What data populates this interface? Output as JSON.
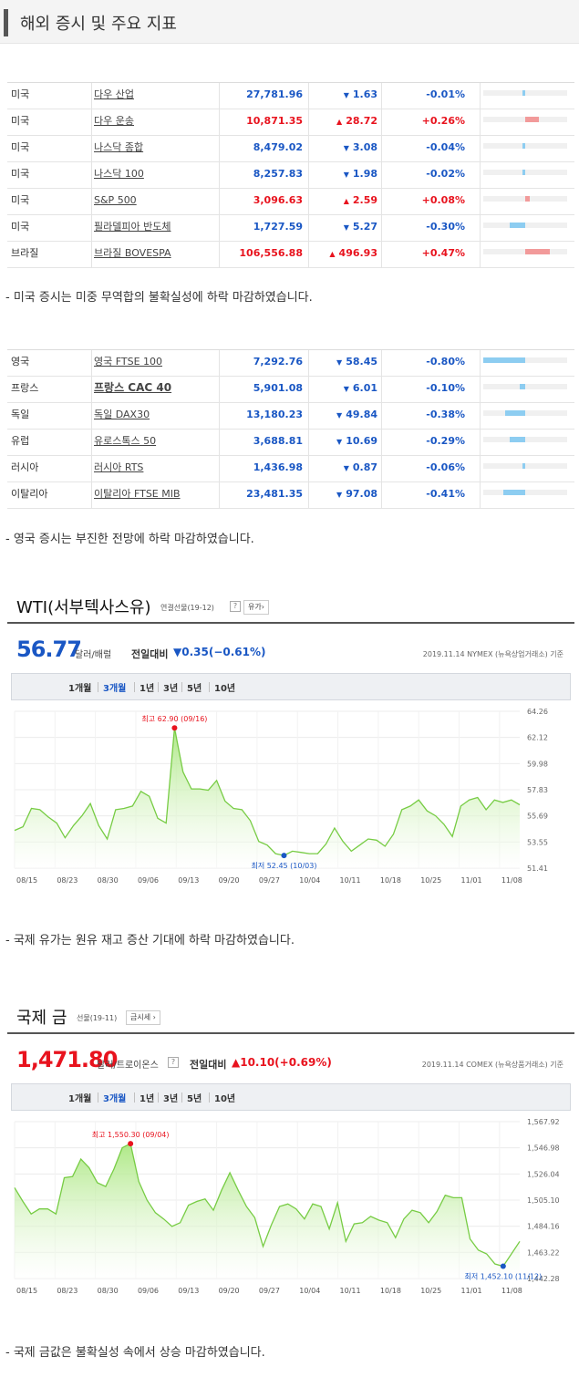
{
  "page_title": "해외 증시 및 주요 지표",
  "table1": [
    {
      "country": "미국",
      "name": "다우 산업",
      "price": "27,781.96",
      "dir": "down",
      "change": "1.63",
      "pct": "-0.01%",
      "bar": 0.01
    },
    {
      "country": "미국",
      "name": "다우 운송",
      "price": "10,871.35",
      "dir": "up",
      "change": "28.72",
      "pct": "+0.26%",
      "bar": 0.26
    },
    {
      "country": "미국",
      "name": "나스닥 종합",
      "price": "8,479.02",
      "dir": "down",
      "change": "3.08",
      "pct": "-0.04%",
      "bar": 0.04
    },
    {
      "country": "미국",
      "name": "나스닥 100",
      "price": "8,257.83",
      "dir": "down",
      "change": "1.98",
      "pct": "-0.02%",
      "bar": 0.02
    },
    {
      "country": "미국",
      "name": "S&P 500",
      "price": "3,096.63",
      "dir": "up",
      "change": "2.59",
      "pct": "+0.08%",
      "bar": 0.08
    },
    {
      "country": "미국",
      "name": "필라델피아 반도체",
      "price": "1,727.59",
      "dir": "down",
      "change": "5.27",
      "pct": "-0.30%",
      "bar": 0.3
    },
    {
      "country": "브라질",
      "name": "브라질 BOVESPA",
      "price": "106,556.88",
      "dir": "up",
      "change": "496.93",
      "pct": "+0.47%",
      "bar": 0.47
    }
  ],
  "note1": "- 미국 증시는 미중 무역합의 불확실성에 하락 마감하였습니다.",
  "table2": [
    {
      "country": "영국",
      "name": "영국 FTSE 100",
      "price": "7,292.76",
      "dir": "down",
      "change": "58.45",
      "pct": "-0.80%",
      "bar": 0.8
    },
    {
      "country": "프랑스",
      "name": "프랑스 CAC 40",
      "bold": true,
      "price": "5,901.08",
      "dir": "down",
      "change": "6.01",
      "pct": "-0.10%",
      "bar": 0.1
    },
    {
      "country": "독일",
      "name": "독일 DAX30",
      "price": "13,180.23",
      "dir": "down",
      "change": "49.84",
      "pct": "-0.38%",
      "bar": 0.38
    },
    {
      "country": "유럽",
      "name": "유로스톡스 50",
      "price": "3,688.81",
      "dir": "down",
      "change": "10.69",
      "pct": "-0.29%",
      "bar": 0.29
    },
    {
      "country": "러시아",
      "name": "러시아 RTS",
      "price": "1,436.98",
      "dir": "down",
      "change": "0.87",
      "pct": "-0.06%",
      "bar": 0.06
    },
    {
      "country": "이탈리아",
      "name": "이탈리아 FTSE MIB",
      "price": "23,481.35",
      "dir": "down",
      "change": "97.08",
      "pct": "-0.41%",
      "bar": 0.41
    }
  ],
  "note2": "- 영국 증시는 부진한 전망에 하락 마감하였습니다.",
  "wti": {
    "title": "WTI(서부텍사스유)",
    "sub": "연결선물(19-12)",
    "help": "?",
    "btn": "유가›",
    "price": "56.77",
    "unit": "달러/배럴",
    "chg_label": "전일대비",
    "chg": "▼0.35(−0.61%)",
    "source": "2019.11.14 NYMEX (뉴욕상업거래소) 기준",
    "tabs": [
      "1개월",
      "3개월",
      "1년",
      "3년",
      "5년",
      "10년"
    ],
    "active_tab": "3개월"
  },
  "note3": "- 국제 유가는 원유 재고 증산 기대에 하락 마감하였습니다.",
  "gold": {
    "title": "국제 금",
    "sub": "선물(19-11)",
    "btn": "금시세 ›",
    "price": "1,471.80",
    "unit": "달러/트로이온스",
    "help": "?",
    "chg_label": "전일대비",
    "chg": "▲10.10(+0.69%)",
    "source": "2019.11.14 COMEX (뉴욕상품거래소) 기준",
    "tabs": [
      "1개월",
      "3개월",
      "1년",
      "3년",
      "5년",
      "10년"
    ],
    "active_tab": "3개월"
  },
  "note4": "- 국제 금값은 불확실성 속에서 상승 마감하였습니다.",
  "chart_data": [
    {
      "type": "area",
      "title": "WTI(서부텍사스유)",
      "x_ticks": [
        "08/15",
        "08/23",
        "08/30",
        "09/06",
        "09/13",
        "09/20",
        "09/27",
        "10/04",
        "10/11",
        "10/18",
        "10/25",
        "11/01",
        "11/08"
      ],
      "y_ticks": [
        "64.26",
        "62.12",
        "59.98",
        "57.83",
        "55.69",
        "53.55",
        "51.41"
      ],
      "ylim": [
        51.41,
        64.26
      ],
      "series": [
        {
          "values": [
            54.5,
            54.8,
            56.3,
            56.2,
            55.6,
            55.1,
            53.9,
            54.9,
            55.7,
            56.7,
            54.9,
            53.8,
            56.2,
            56.3,
            56.5,
            57.7,
            57.3,
            55.5,
            55.1,
            62.9,
            59.3,
            57.9,
            57.9,
            57.8,
            58.6,
            56.9,
            56.3,
            56.2,
            55.3,
            53.6,
            53.3,
            52.6,
            52.45,
            52.8,
            52.7,
            52.6,
            52.6,
            53.4,
            54.7,
            53.6,
            52.8,
            53.3,
            53.8,
            53.7,
            53.2,
            54.2,
            56.2,
            56.5,
            57.0,
            56.1,
            55.7,
            55.0,
            54.0,
            56.5,
            57.0,
            57.2,
            56.2,
            57.0,
            56.8,
            57.0,
            56.6
          ]
        }
      ],
      "annotations": [
        {
          "label": "최고 62.90 (09/16)",
          "index": 19,
          "value": 62.9
        },
        {
          "label": "최저 52.45 (10/03)",
          "index": 32,
          "value": 52.45
        }
      ]
    },
    {
      "type": "area",
      "title": "국제 금",
      "x_ticks": [
        "08/15",
        "08/23",
        "08/30",
        "09/06",
        "09/13",
        "09/20",
        "09/27",
        "10/04",
        "10/11",
        "10/18",
        "10/25",
        "11/01",
        "11/08"
      ],
      "y_ticks": [
        "1,567.92",
        "1,546.98",
        "1,526.04",
        "1,505.10",
        "1,484.16",
        "1,463.22",
        "1,442.28"
      ],
      "ylim": [
        1442.28,
        1567.92
      ],
      "series": [
        {
          "values": [
            1515,
            1504,
            1494,
            1498,
            1498,
            1494,
            1523,
            1524,
            1538,
            1531,
            1519,
            1516,
            1530,
            1547,
            1550.3,
            1520,
            1505,
            1495,
            1490,
            1484,
            1487,
            1501,
            1504,
            1506,
            1497,
            1513,
            1527,
            1513,
            1500,
            1491,
            1468,
            1485,
            1500,
            1502,
            1498,
            1490,
            1502,
            1500,
            1482,
            1503,
            1472,
            1486,
            1487,
            1492,
            1489,
            1487,
            1475,
            1490,
            1497,
            1495,
            1487,
            1496,
            1509,
            1507,
            1507,
            1474,
            1465,
            1462,
            1454,
            1452.1,
            1462,
            1472
          ]
        }
      ],
      "annotations": [
        {
          "label": "최고 1,550.30 (09/04)",
          "index": 14,
          "value": 1550.3
        },
        {
          "label": "최저 1,452.10 (11/12)",
          "index": 59,
          "value": 1452.1
        }
      ]
    }
  ]
}
